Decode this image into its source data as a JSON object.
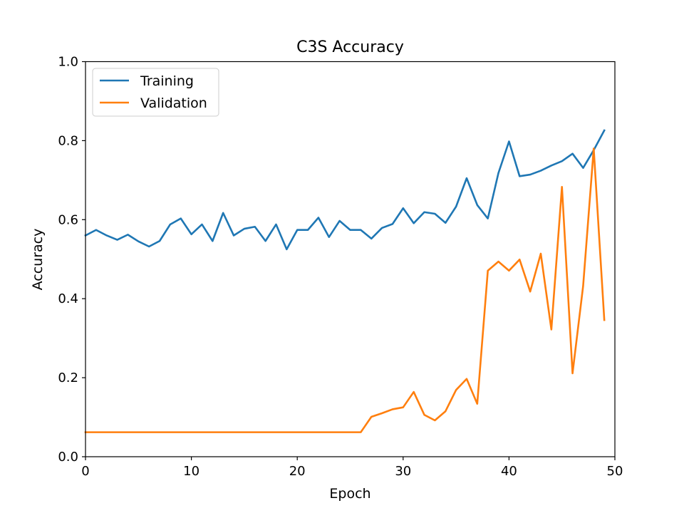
{
  "chart_data": {
    "type": "line",
    "title": "C3S Accuracy",
    "xlabel": "Epoch",
    "ylabel": "Accuracy",
    "xlim": [
      0,
      50
    ],
    "ylim": [
      0.0,
      1.0
    ],
    "xticks": [
      0,
      10,
      20,
      30,
      40,
      50
    ],
    "xtick_labels": [
      "0",
      "10",
      "20",
      "30",
      "40",
      "50"
    ],
    "yticks": [
      0.0,
      0.2,
      0.4,
      0.6,
      0.8,
      1.0
    ],
    "ytick_labels": [
      "0.0",
      "0.2",
      "0.4",
      "0.6",
      "0.8",
      "1.0"
    ],
    "grid": false,
    "legend_position": "top-left",
    "x": [
      0,
      1,
      2,
      3,
      4,
      5,
      6,
      7,
      8,
      9,
      10,
      11,
      12,
      13,
      14,
      15,
      16,
      17,
      18,
      19,
      20,
      21,
      22,
      23,
      24,
      25,
      26,
      27,
      28,
      29,
      30,
      31,
      32,
      33,
      34,
      35,
      36,
      37,
      38,
      39,
      40,
      41,
      42,
      43,
      44,
      45,
      46,
      47,
      48,
      49
    ],
    "series": [
      {
        "name": "Training",
        "color": "#1f77b4",
        "values": [
          0.56,
          0.574,
          0.56,
          0.549,
          0.562,
          0.545,
          0.532,
          0.546,
          0.588,
          0.603,
          0.563,
          0.588,
          0.546,
          0.617,
          0.56,
          0.577,
          0.582,
          0.546,
          0.588,
          0.525,
          0.574,
          0.574,
          0.605,
          0.556,
          0.597,
          0.574,
          0.574,
          0.552,
          0.579,
          0.589,
          0.629,
          0.591,
          0.619,
          0.615,
          0.592,
          0.633,
          0.705,
          0.637,
          0.603,
          0.718,
          0.798,
          0.71,
          0.714,
          0.724,
          0.737,
          0.748,
          0.767,
          0.731,
          0.776,
          0.826
        ]
      },
      {
        "name": "Validation",
        "color": "#ff7f0e",
        "values": [
          0.062,
          0.062,
          0.062,
          0.062,
          0.062,
          0.062,
          0.062,
          0.062,
          0.062,
          0.062,
          0.062,
          0.062,
          0.062,
          0.062,
          0.062,
          0.062,
          0.062,
          0.062,
          0.062,
          0.062,
          0.062,
          0.062,
          0.062,
          0.062,
          0.062,
          0.062,
          0.062,
          0.101,
          0.11,
          0.12,
          0.125,
          0.164,
          0.106,
          0.092,
          0.115,
          0.169,
          0.197,
          0.134,
          0.471,
          0.494,
          0.471,
          0.499,
          0.418,
          0.514,
          0.322,
          0.683,
          0.211,
          0.432,
          0.78,
          0.346
        ]
      }
    ]
  }
}
